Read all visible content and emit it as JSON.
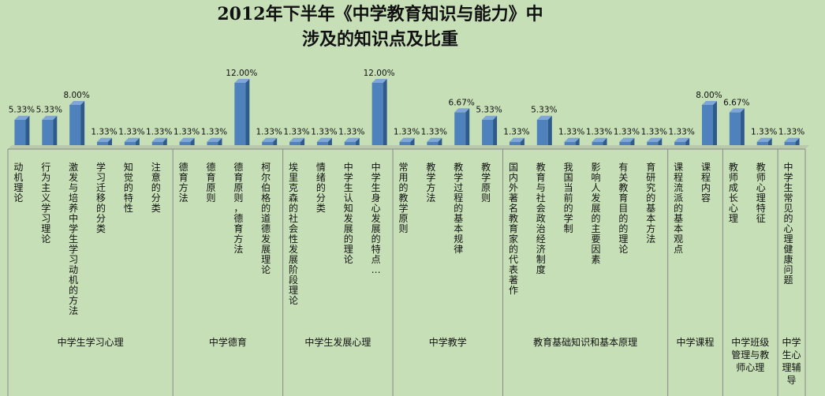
{
  "chart_data": {
    "type": "bar",
    "title": [
      "2012年下半年《中学教育知识与能力》中",
      "涉及的知识点及比重"
    ],
    "xlabel": "",
    "ylabel": "",
    "ylim": [
      0,
      12
    ],
    "grid": false,
    "legend": "none",
    "bar_color": "#4f81bd",
    "categories": [
      "动机理论",
      "行为主义学习理论",
      "激发与培养中学生学习动机的方法",
      "学习迁移的分类",
      "知觉的特性",
      "注意的分类",
      "德育方法",
      "德育原则",
      "德育原则，德育方法",
      "柯尔伯格的道德发展理论",
      "埃里克森的社会性发展阶段理论",
      "情绪的分类",
      "中学生认知发展的理论",
      "中学生身心发展的特点…",
      "常用的教学原则",
      "教学方法",
      "教学过程的基本规律",
      "教学原则",
      "国内外著名教育家的代表著作",
      "教育与社会政治经济制度",
      "我国当前的学制",
      "影响人发展的主要因素",
      "有关教育目的的理论",
      "育研究的基本方法",
      "课程流派的基本观点",
      "课程内容",
      "教师成长心理",
      "教师心理特征",
      "中学生常见的心理健康问题"
    ],
    "values": [
      5.33,
      5.33,
      8.0,
      1.33,
      1.33,
      1.33,
      1.33,
      1.33,
      12.0,
      1.33,
      1.33,
      1.33,
      1.33,
      12.0,
      1.33,
      1.33,
      6.67,
      5.33,
      1.33,
      5.33,
      1.33,
      1.33,
      1.33,
      1.33,
      1.33,
      8.0,
      6.67,
      1.33,
      1.33
    ],
    "data_labels": [
      "5.33%",
      "5.33%",
      "8.00%",
      "1.33%",
      "1.33%",
      "1.33%",
      "1.33%",
      "1.33%",
      "12.00%",
      "1.33%",
      "1.33%",
      "1.33%",
      "1.33%",
      "12.00%",
      "1.33%",
      "1.33%",
      "6.67%",
      "5.33%",
      "1.33%",
      "5.33%",
      "1.33%",
      "1.33%",
      "1.33%",
      "1.33%",
      "1.33%",
      "8.00%",
      "6.67%",
      "1.33%",
      "1.33%"
    ],
    "groups": [
      {
        "name": [
          "中学生学习心理"
        ],
        "count": 6
      },
      {
        "name": [
          "中学德育"
        ],
        "count": 4
      },
      {
        "name": [
          "中学生发展心理"
        ],
        "count": 4
      },
      {
        "name": [
          "中学教学"
        ],
        "count": 4
      },
      {
        "name": [
          "教育基础知识和基本原理"
        ],
        "count": 6
      },
      {
        "name": [
          "中学课程"
        ],
        "count": 2
      },
      {
        "name": [
          "中学班级",
          "管理与教",
          "师心理"
        ],
        "count": 2
      },
      {
        "name": [
          "中学",
          "生心",
          "理辅",
          "导"
        ],
        "count": 1
      }
    ]
  }
}
